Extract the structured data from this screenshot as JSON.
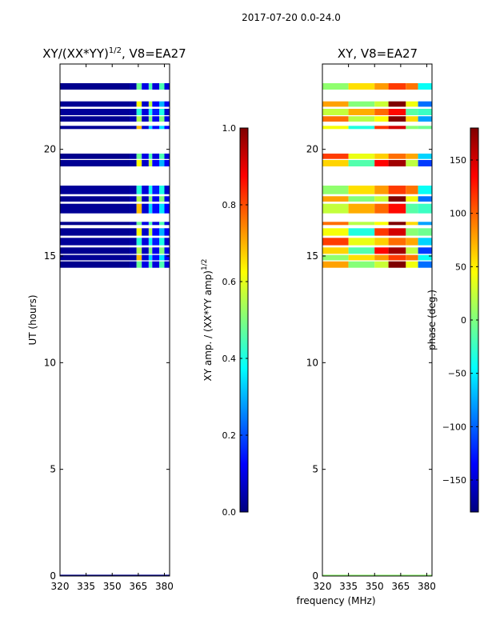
{
  "suptitle": "2017-07-20 0.0-24.0",
  "shared_xlabel": "frequency (MHz)",
  "colors": {
    "jet": [
      "#00007f",
      "#0000ff",
      "#007fff",
      "#00ffff",
      "#7fff7f",
      "#ffff00",
      "#ff7f00",
      "#ff0000",
      "#7f0000"
    ],
    "empty_band": "#ffffff"
  },
  "chart_data": [
    {
      "type": "heatmap",
      "title_main": "XY/(XX*YY)",
      "title_exp": "1/2",
      "title_tail": ", V8=EA27",
      "xlabel": "",
      "ylabel": "UT (hours)",
      "xlim": [
        320,
        383
      ],
      "ylim": [
        0,
        24
      ],
      "xticks": [
        320,
        335,
        350,
        365,
        380
      ],
      "yticks": [
        0,
        5,
        10,
        15,
        20
      ],
      "bands_ut": [
        [
          22.8,
          23.1
        ],
        [
          22.0,
          22.25
        ],
        [
          21.6,
          21.9
        ],
        [
          21.3,
          21.55
        ],
        [
          20.95,
          21.1
        ],
        [
          19.55,
          19.8
        ],
        [
          19.2,
          19.5
        ],
        [
          17.9,
          18.3
        ],
        [
          17.55,
          17.8
        ],
        [
          17.0,
          17.45
        ],
        [
          16.45,
          16.6
        ],
        [
          15.95,
          16.3
        ],
        [
          15.5,
          15.85
        ],
        [
          15.1,
          15.4
        ],
        [
          14.8,
          15.05
        ],
        [
          14.45,
          14.75
        ]
      ],
      "freq_zones_mhz": [
        [
          320,
          360,
          0.02
        ],
        [
          360,
          364,
          0.04
        ],
        [
          364,
          367,
          0.55
        ],
        [
          367,
          371,
          0.08
        ],
        [
          371,
          373,
          0.45
        ],
        [
          373,
          377,
          0.12
        ],
        [
          377,
          380,
          0.4
        ],
        [
          380,
          383,
          0.1
        ]
      ],
      "colorbar": {
        "label_main": "XY amp. / (XX*YY amp)",
        "label_exp": "1/2",
        "ticks": [
          0.0,
          0.2,
          0.4,
          0.6,
          0.8,
          1.0
        ],
        "tick_labels": [
          "0.0",
          "0.2",
          "0.4",
          "0.6",
          "0.8",
          "1.0"
        ],
        "range": [
          0,
          1
        ]
      }
    },
    {
      "type": "heatmap",
      "title_main": "XY, V8=EA27",
      "xlabel": "frequency (MHz)",
      "ylabel": "",
      "xlim": [
        320,
        383
      ],
      "ylim": [
        0,
        24
      ],
      "xticks": [
        320,
        335,
        350,
        365,
        380
      ],
      "yticks": [
        0,
        5,
        10,
        15,
        20
      ],
      "bands_ut": [
        [
          22.8,
          23.1
        ],
        [
          22.0,
          22.25
        ],
        [
          21.6,
          21.9
        ],
        [
          21.3,
          21.55
        ],
        [
          20.95,
          21.1
        ],
        [
          19.55,
          19.8
        ],
        [
          19.2,
          19.5
        ],
        [
          17.9,
          18.3
        ],
        [
          17.55,
          17.8
        ],
        [
          17.0,
          17.45
        ],
        [
          16.45,
          16.6
        ],
        [
          15.95,
          16.3
        ],
        [
          15.5,
          15.85
        ],
        [
          15.1,
          15.4
        ],
        [
          14.8,
          15.05
        ],
        [
          14.45,
          14.75
        ]
      ],
      "phase_zones_mhz": [
        [
          320,
          335,
          60
        ],
        [
          335,
          350,
          20
        ],
        [
          350,
          358,
          80
        ],
        [
          358,
          368,
          150
        ],
        [
          368,
          375,
          40
        ],
        [
          375,
          383,
          -60
        ]
      ],
      "colorbar": {
        "label_main": "phase (deg.)",
        "ticks": [
          -150,
          -100,
          -50,
          0,
          50,
          100,
          150
        ],
        "tick_labels": [
          "−150",
          "−100",
          "−50",
          "0",
          "50",
          "100",
          "150"
        ],
        "range": [
          -180,
          180
        ]
      }
    }
  ]
}
